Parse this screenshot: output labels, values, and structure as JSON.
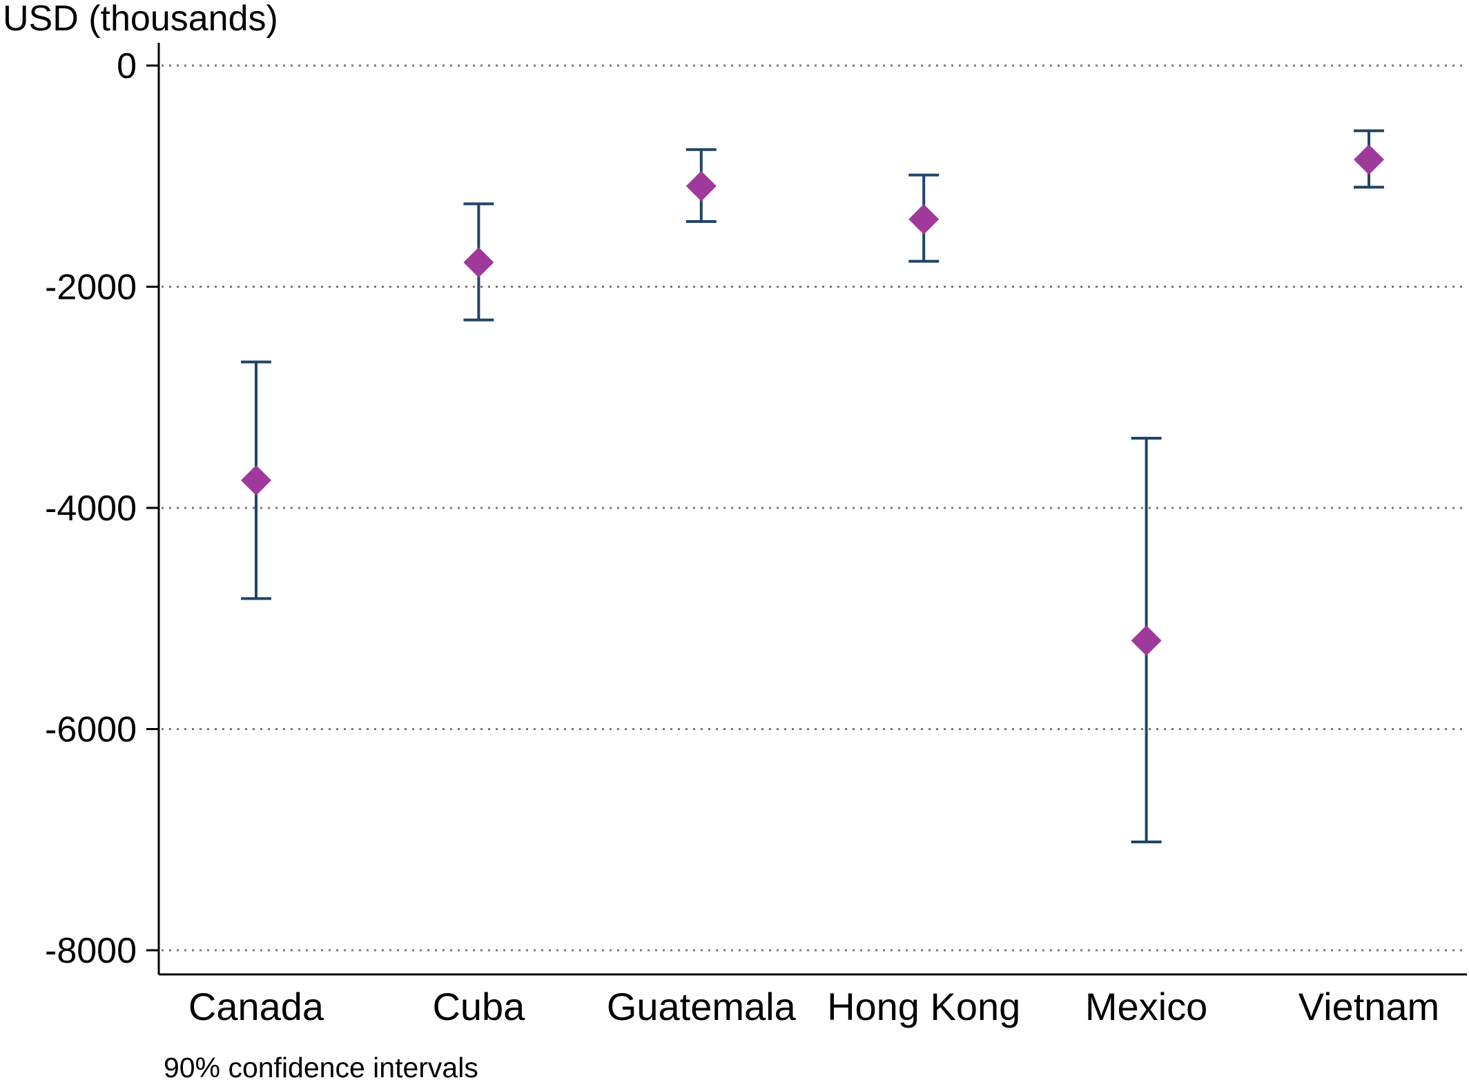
{
  "chart_data": {
    "type": "scatter",
    "title": "",
    "xlabel": "",
    "ylabel": "USD (thousands)",
    "note": "90% confidence intervals",
    "categories": [
      "Canada",
      "Cuba",
      "Guatemala",
      "Hong Kong",
      "Mexico",
      "Vietnam"
    ],
    "series": [
      {
        "estimate": [
          -3750,
          -1780,
          -1090,
          -1390,
          -5200,
          -850
        ],
        "ci_low": [
          -4820,
          -2300,
          -1410,
          -1770,
          -7020,
          -1100
        ],
        "ci_high": [
          -2680,
          -1250,
          -760,
          -990,
          -3370,
          -590
        ]
      }
    ],
    "yticks": [
      0,
      -2000,
      -4000,
      -6000,
      -8000
    ],
    "ytick_labels": [
      "0",
      "-2000",
      "-4000",
      "-6000",
      "-8000"
    ],
    "ylim": [
      -8220,
      100
    ],
    "grid": "horizontal dotted",
    "colors": {
      "marker": "#a0399c",
      "errorbar": "#1f4468",
      "grid": "#777777",
      "axis": "#000000"
    }
  }
}
